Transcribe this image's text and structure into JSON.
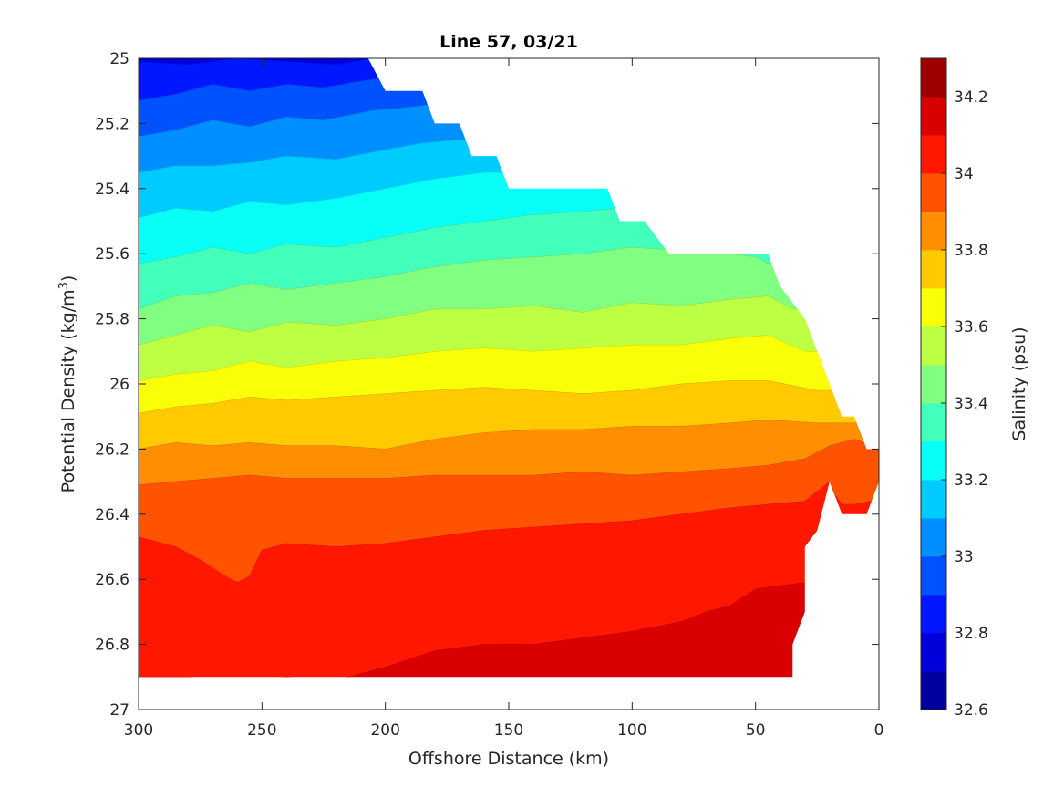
{
  "chart_data": {
    "type": "contour",
    "title": "Line 57, 03/21",
    "xlabel": "Offshore Distance (km)",
    "ylabel_main": "Potential Density (kg/m",
    "ylabel_sup": "3",
    "ylabel_end": ")",
    "xlim": [
      300,
      0
    ],
    "ylim": [
      25,
      27
    ],
    "x_reversed": true,
    "y_reversed": true,
    "x_ticks": [
      300,
      250,
      200,
      150,
      100,
      50,
      0
    ],
    "x_tick_labels": [
      "300",
      "250",
      "200",
      "150",
      "100",
      "50",
      "0"
    ],
    "y_ticks": [
      25,
      25.2,
      25.4,
      25.6,
      25.8,
      26,
      26.2,
      26.4,
      26.6,
      26.8,
      27
    ],
    "y_tick_labels": [
      "25",
      "25.2",
      "25.4",
      "25.6",
      "25.8",
      "26",
      "26.2",
      "26.4",
      "26.6",
      "26.8",
      "27"
    ],
    "colorbar": {
      "label": "Salinity (psu)",
      "range": [
        32.6,
        34.3
      ],
      "ticks": [
        32.6,
        32.8,
        33,
        33.2,
        33.4,
        33.6,
        33.8,
        34,
        34.2
      ],
      "tick_labels": [
        "32.6",
        "32.8",
        "33",
        "33.2",
        "33.4",
        "33.6",
        "33.8",
        "34",
        "34.2"
      ],
      "colormap": "jet",
      "level_step": 0.1
    },
    "data_boundary": {
      "x": [
        300,
        207,
        200,
        185,
        180,
        170,
        165,
        155,
        150,
        110,
        105,
        95,
        85,
        45,
        40,
        30,
        20,
        15,
        10,
        5,
        0,
        0,
        5,
        15,
        20,
        25,
        30,
        30,
        35,
        35,
        40,
        300
      ],
      "y": [
        25,
        25,
        25.1,
        25.1,
        25.2,
        25.2,
        25.3,
        25.3,
        25.4,
        25.4,
        25.5,
        25.5,
        25.6,
        25.6,
        25.7,
        25.8,
        26,
        26.1,
        26.1,
        26.2,
        26.2,
        26.3,
        26.4,
        26.4,
        26.3,
        26.45,
        26.5,
        26.7,
        26.8,
        26.9,
        26.9,
        26.9
      ]
    },
    "contour_lines": [
      {
        "level": 32.8,
        "x": [
          300,
          280,
          260,
          240,
          220,
          205
        ],
        "y": [
          25.01,
          25.02,
          25.0,
          25.01,
          25.02,
          25.0
        ]
      },
      {
        "level": 32.9,
        "x": [
          300,
          285,
          270,
          255,
          240,
          225,
          210,
          200
        ],
        "y": [
          25.13,
          25.11,
          25.08,
          25.1,
          25.08,
          25.09,
          25.07,
          25.06
        ]
      },
      {
        "level": 33.0,
        "x": [
          300,
          285,
          270,
          255,
          240,
          225,
          205,
          190,
          180
        ],
        "y": [
          25.24,
          25.22,
          25.19,
          25.21,
          25.18,
          25.19,
          25.16,
          25.15,
          25.14
        ]
      },
      {
        "level": 33.1,
        "x": [
          300,
          285,
          270,
          255,
          240,
          220,
          200,
          185,
          170,
          160
        ],
        "y": [
          25.35,
          25.33,
          25.33,
          25.32,
          25.3,
          25.31,
          25.28,
          25.26,
          25.25,
          25.25
        ]
      },
      {
        "level": 33.2,
        "x": [
          300,
          285,
          270,
          255,
          240,
          220,
          200,
          180,
          160,
          150
        ],
        "y": [
          25.49,
          25.46,
          25.47,
          25.44,
          25.45,
          25.43,
          25.4,
          25.37,
          25.35,
          25.35
        ]
      },
      {
        "level": 33.3,
        "x": [
          300,
          285,
          270,
          255,
          240,
          220,
          200,
          180,
          160,
          140,
          120,
          105
        ],
        "y": [
          25.63,
          25.61,
          25.58,
          25.6,
          25.57,
          25.58,
          25.55,
          25.52,
          25.5,
          25.48,
          25.47,
          25.46
        ]
      },
      {
        "level": 33.4,
        "x": [
          300,
          285,
          270,
          255,
          240,
          220,
          200,
          180,
          160,
          140,
          120,
          100,
          80,
          60,
          50,
          45
        ],
        "y": [
          25.77,
          25.73,
          25.72,
          25.69,
          25.71,
          25.69,
          25.67,
          25.64,
          25.62,
          25.61,
          25.6,
          25.58,
          25.59,
          25.6,
          25.61,
          25.63
        ]
      },
      {
        "level": 33.5,
        "x": [
          300,
          285,
          270,
          255,
          240,
          220,
          200,
          180,
          160,
          140,
          120,
          100,
          80,
          60,
          45,
          35
        ],
        "y": [
          25.88,
          25.85,
          25.82,
          25.84,
          25.81,
          25.82,
          25.8,
          25.77,
          25.77,
          25.76,
          25.78,
          25.75,
          25.76,
          25.74,
          25.73,
          25.77
        ]
      },
      {
        "level": 33.6,
        "x": [
          300,
          285,
          270,
          255,
          240,
          220,
          200,
          180,
          160,
          140,
          120,
          100,
          80,
          60,
          45,
          30
        ],
        "y": [
          25.99,
          25.97,
          25.96,
          25.93,
          25.95,
          25.93,
          25.92,
          25.9,
          25.89,
          25.9,
          25.89,
          25.88,
          25.88,
          25.86,
          25.85,
          25.9
        ]
      },
      {
        "level": 33.7,
        "x": [
          300,
          285,
          270,
          255,
          240,
          220,
          200,
          180,
          160,
          140,
          120,
          100,
          80,
          60,
          45,
          25
        ],
        "y": [
          26.09,
          26.07,
          26.06,
          26.04,
          26.05,
          26.04,
          26.03,
          26.02,
          26.01,
          26.02,
          26.03,
          26.02,
          26.0,
          25.99,
          25.99,
          26.02
        ]
      },
      {
        "level": 33.8,
        "x": [
          300,
          285,
          270,
          255,
          240,
          220,
          200,
          180,
          160,
          140,
          120,
          100,
          80,
          60,
          45,
          25,
          18
        ],
        "y": [
          26.2,
          26.18,
          26.19,
          26.18,
          26.19,
          26.19,
          26.2,
          26.17,
          26.15,
          26.14,
          26.14,
          26.13,
          26.13,
          26.12,
          26.11,
          26.12,
          26.12
        ]
      },
      {
        "level": 33.9,
        "x": [
          300,
          285,
          270,
          255,
          240,
          220,
          200,
          180,
          160,
          140,
          120,
          100,
          80,
          60,
          45,
          30,
          20,
          10,
          2
        ],
        "y": [
          26.31,
          26.3,
          26.29,
          26.28,
          26.29,
          26.29,
          26.29,
          26.28,
          26.28,
          26.28,
          26.27,
          26.28,
          26.27,
          26.26,
          26.25,
          26.23,
          26.19,
          26.17,
          26.19
        ]
      },
      {
        "level": 34.0,
        "x": [
          300,
          285,
          275,
          265,
          260,
          255,
          250,
          240,
          220,
          200,
          180,
          160,
          140,
          120,
          100,
          80,
          60,
          45,
          30,
          20,
          18,
          15,
          10,
          3
        ],
        "y": [
          26.47,
          26.5,
          26.54,
          26.59,
          26.61,
          26.59,
          26.51,
          26.49,
          26.5,
          26.49,
          26.47,
          26.45,
          26.44,
          26.43,
          26.42,
          26.4,
          26.38,
          26.37,
          26.36,
          26.3,
          26.34,
          26.37,
          26.37,
          26.36
        ]
      },
      {
        "level": 34.1,
        "x": [
          300,
          280,
          260,
          240,
          220,
          200,
          180,
          160,
          140,
          120,
          100,
          80,
          70,
          60,
          50,
          40,
          30
        ],
        "y": [
          26.9,
          26.9,
          26.91,
          26.9,
          26.91,
          26.87,
          26.82,
          26.8,
          26.8,
          26.78,
          26.76,
          26.73,
          26.7,
          26.68,
          26.63,
          26.62,
          26.61
        ]
      }
    ]
  }
}
